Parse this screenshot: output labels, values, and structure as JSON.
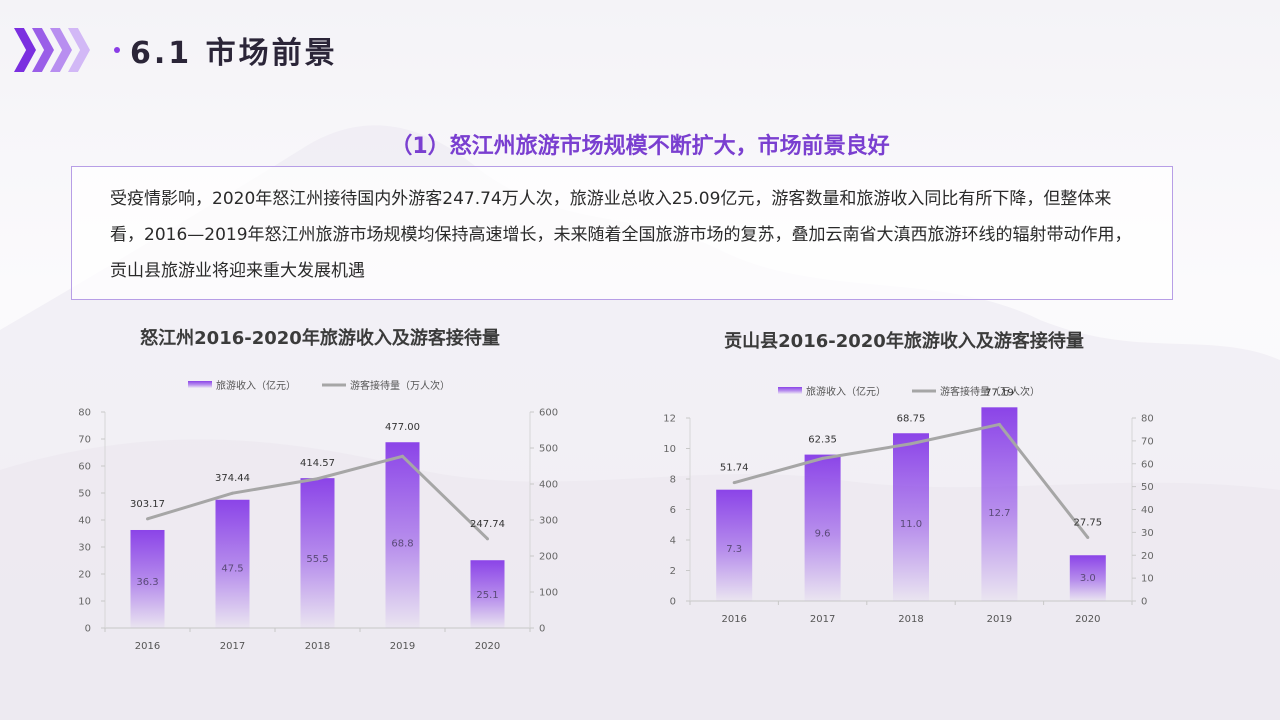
{
  "header": {
    "title": "6.1 市场前景"
  },
  "subtitle": "（1）怒江州旅游市场规模不断扩大，市场前景良好",
  "paragraph": "受疫情影响，2020年怒江州接待国内外游客247.74万人次，旅游业总收入25.09亿元，游客数量和旅游收入同比有所下降，但整体来看，2016—2019年怒江州旅游市场规模均保持高速增长，未来随着全国旅游市场的复苏，叠加云南省大滇西旅游环线的辐射带动作用，贡山县旅游业将迎来重大发展机遇",
  "colors": {
    "accent": "#8a3de6",
    "bar": "#8b44e8",
    "line": "#a6a6a6"
  },
  "chart_data": [
    {
      "type": "bar",
      "title": "怒江州2016-2020年旅游收入及游客接待量",
      "categories": [
        "2016",
        "2017",
        "2018",
        "2019",
        "2020"
      ],
      "series": [
        {
          "name": "旅游收入（亿元）",
          "type": "bar",
          "axis": "left",
          "values": [
            36.3,
            47.5,
            55.5,
            68.8,
            25.1
          ],
          "labels": [
            "36.3",
            "47.5",
            "55.5",
            "68.8",
            "25.1"
          ]
        },
        {
          "name": "游客接待量（万人次）",
          "type": "line",
          "axis": "right",
          "values": [
            303.17,
            374.44,
            414.57,
            477.0,
            247.74
          ],
          "labels": [
            "303.17",
            "374.44",
            "414.57",
            "477.00",
            "247.74"
          ]
        }
      ],
      "left_axis": {
        "range": [
          0,
          80
        ],
        "ticks": [
          "0",
          "10",
          "20",
          "30",
          "40",
          "50",
          "60",
          "70",
          "80"
        ]
      },
      "right_axis": {
        "range": [
          0,
          600
        ],
        "ticks": [
          "0",
          "100",
          "200",
          "300",
          "400",
          "500",
          "600"
        ]
      },
      "legend": "top-center",
      "grid": false
    },
    {
      "type": "bar",
      "title": "贡山县2016-2020年旅游收入及游客接待量",
      "categories": [
        "2016",
        "2017",
        "2018",
        "2019",
        "2020"
      ],
      "series": [
        {
          "name": "旅游收入（亿元）",
          "type": "bar",
          "axis": "left",
          "values": [
            7.3,
            9.6,
            11.0,
            12.7,
            3.0
          ],
          "labels": [
            "7.3",
            "9.6",
            "11.0",
            "12.7",
            "3.0"
          ]
        },
        {
          "name": "游客接待量（万人次）",
          "type": "line",
          "axis": "right",
          "values": [
            51.74,
            62.35,
            68.75,
            77.19,
            27.75
          ],
          "labels": [
            "51.74",
            "62.35",
            "68.75",
            "77.19",
            "27.75"
          ]
        }
      ],
      "left_axis": {
        "range": [
          0,
          12
        ],
        "ticks": [
          "0",
          "2",
          "4",
          "6",
          "8",
          "10",
          "12"
        ]
      },
      "right_axis": {
        "range": [
          0,
          80
        ],
        "ticks": [
          "0",
          "10",
          "20",
          "30",
          "40",
          "50",
          "60",
          "70",
          "80"
        ]
      },
      "legend": "top-center",
      "grid": false
    }
  ]
}
